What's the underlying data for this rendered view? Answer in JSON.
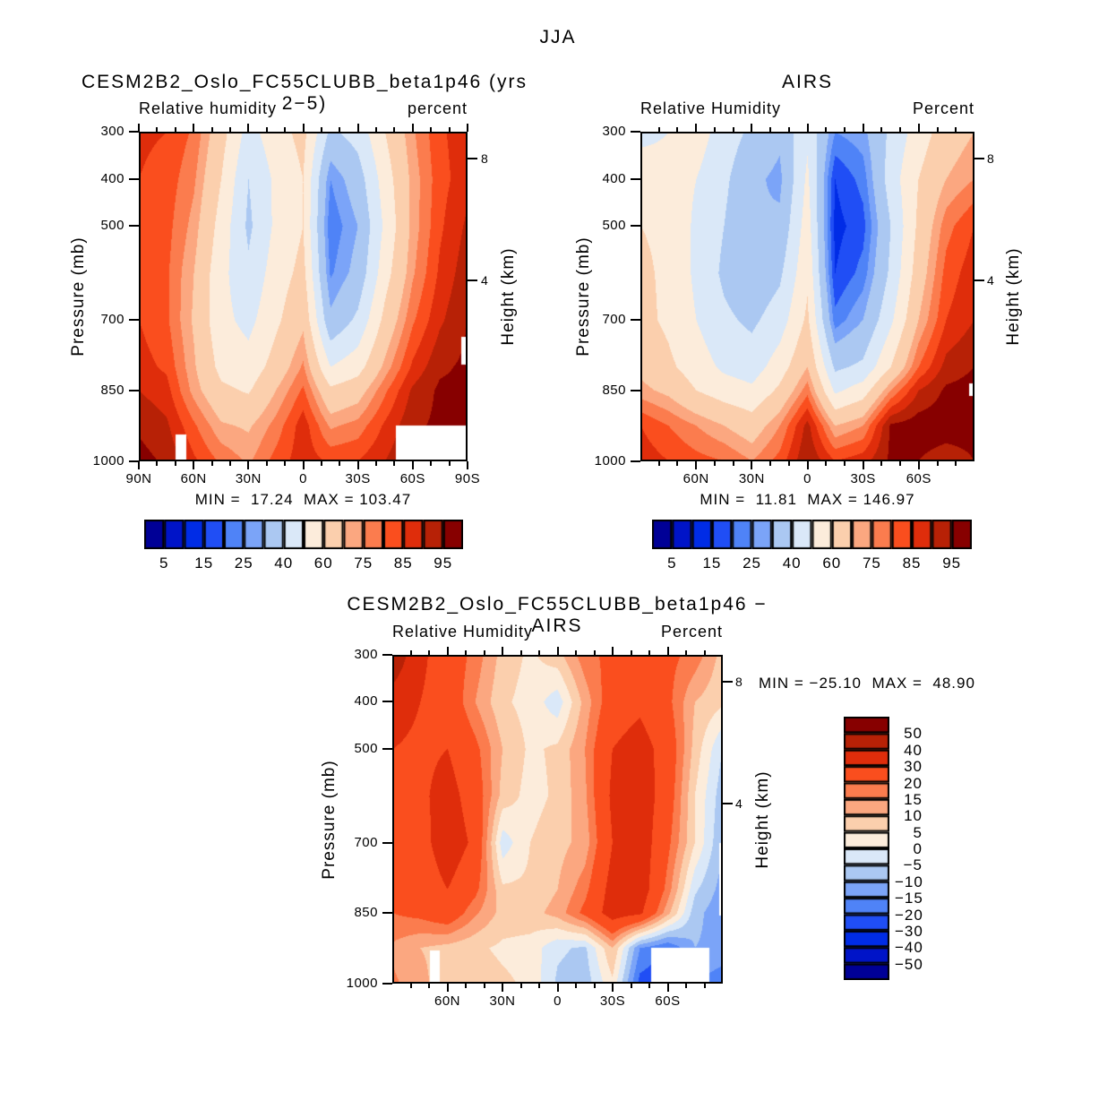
{
  "header": {
    "title": "JJA"
  },
  "palette": [
    "#000096",
    "#0014C8",
    "#002CE6",
    "#204EF5",
    "#4F83F7",
    "#7BA4F8",
    "#ABC8F2",
    "#DAE8F8",
    "#FCECDB",
    "#FBCFAD",
    "#FBA780",
    "#FB7C4E",
    "#FA4E1E",
    "#DF2D0B",
    "#B72106",
    "#870000"
  ],
  "chart_data": [
    {
      "type": "filled_contour",
      "title": "CESM2B2_Oslo_FC55CLUBB_beta1p46 (yrs 2−5)",
      "subtitle_left": "Relative humidity",
      "subtitle_right": "percent",
      "ylabel_left": "Pressure (mb)",
      "ylabel_right": "Height (km)",
      "stats_text": "MIN =  17.24  MAX = 103.47",
      "min": 17.24,
      "max": 103.47,
      "x_range": [
        90,
        -90
      ],
      "y_range": [
        300,
        1000
      ],
      "x_ticks": {
        "labels": [
          "90N",
          "60N",
          "30N",
          "0",
          "30S",
          "60S",
          "90S"
        ],
        "lats": [
          90,
          60,
          30,
          0,
          -30,
          -60,
          -90
        ]
      },
      "y_ticks": [
        "300",
        "400",
        "500",
        "700",
        "850",
        "1000"
      ],
      "height_km_ticks": [
        {
          "label": "8",
          "pressure_mb": 357
        },
        {
          "label": "4",
          "pressure_mb": 616
        }
      ],
      "levels": [
        5,
        10,
        15,
        20,
        25,
        30,
        40,
        50,
        60,
        70,
        75,
        80,
        85,
        90,
        95
      ],
      "colorbar_labels": [
        "5",
        "15",
        "25",
        "40",
        "60",
        "75",
        "85",
        "95"
      ],
      "colorbar_label_boundaries": [
        1,
        3,
        5,
        7,
        9,
        11,
        13,
        15
      ],
      "grid_lats": [
        90,
        75,
        60,
        45,
        30,
        15,
        0,
        -15,
        -30,
        -45,
        -60,
        -75,
        -90
      ],
      "grid_pressures_mb": [
        300,
        400,
        500,
        600,
        700,
        800,
        850,
        925,
        1000
      ],
      "values": [
        [
          86,
          85,
          79,
          64,
          46,
          56,
          63,
          38,
          44,
          60,
          74,
          84,
          88
        ],
        [
          85,
          83,
          76,
          60,
          40,
          52,
          60,
          25,
          35,
          55,
          72,
          83,
          88
        ],
        [
          84,
          82,
          73,
          56,
          38,
          52,
          60,
          21,
          30,
          52,
          72,
          84,
          91
        ],
        [
          84,
          81,
          70,
          53,
          42,
          55,
          63,
          24,
          33,
          56,
          74,
          86,
          93
        ],
        [
          85,
          81,
          69,
          53,
          47,
          58,
          68,
          32,
          42,
          63,
          79,
          89,
          95
        ],
        [
          87,
          84,
          71,
          57,
          54,
          64,
          76,
          50,
          56,
          72,
          86,
          94,
          96
        ],
        [
          90,
          87,
          73,
          62,
          59,
          70,
          81,
          62,
          66,
          79,
          91,
          96,
          96
        ],
        [
          94,
          91,
          81,
          71,
          69,
          77,
          88,
          74,
          77,
          86,
          94,
          96,
          96
        ],
        [
          97,
          94,
          86,
          79,
          74,
          82,
          88,
          84,
          85,
          90,
          95,
          96,
          96
        ]
      ],
      "missing_regions": [
        {
          "latN": 70,
          "latS": 64,
          "p0": 943,
          "p1": 1000
        },
        {
          "latN": -51,
          "latS": -90,
          "p0": 924,
          "p1": 1000
        },
        {
          "latN": -87,
          "latS": -90,
          "p0": 735,
          "p1": 795
        }
      ]
    },
    {
      "type": "filled_contour",
      "title": "AIRS",
      "subtitle_left": "Relative Humidity",
      "subtitle_right": "Percent",
      "ylabel_left": "Pressure (mb)",
      "ylabel_right": "Height (km)",
      "stats_text": "MIN =  11.81  MAX = 146.97",
      "min": 11.81,
      "max": 146.97,
      "x_range": [
        90,
        -90
      ],
      "y_range": [
        300,
        1000
      ],
      "x_ticks": {
        "labels": [
          "60N",
          "30N",
          "0",
          "30S",
          "60S"
        ],
        "lats": [
          60,
          30,
          0,
          -30,
          -60
        ]
      },
      "y_ticks": [
        "300",
        "400",
        "500",
        "700",
        "850",
        "1000"
      ],
      "height_km_ticks": [
        {
          "label": "8",
          "pressure_mb": 357
        },
        {
          "label": "4",
          "pressure_mb": 616
        }
      ],
      "levels": [
        5,
        10,
        15,
        20,
        25,
        30,
        40,
        50,
        60,
        70,
        75,
        80,
        85,
        90,
        95
      ],
      "colorbar_labels": [
        "5",
        "15",
        "25",
        "40",
        "60",
        "75",
        "85",
        "95"
      ],
      "colorbar_label_boundaries": [
        1,
        3,
        5,
        7,
        9,
        11,
        13,
        15
      ],
      "grid_lats": [
        90,
        75,
        60,
        45,
        30,
        15,
        0,
        -15,
        -30,
        -45,
        -60,
        -75,
        -90
      ],
      "grid_pressures_mb": [
        300,
        400,
        500,
        600,
        700,
        800,
        850,
        925,
        1000
      ],
      "values": [
        [
          46,
          50,
          55,
          45,
          38,
          32,
          48,
          25,
          28,
          42,
          55,
          65,
          70
        ],
        [
          58,
          55,
          50,
          42,
          32,
          28,
          52,
          15,
          22,
          45,
          60,
          70,
          75
        ],
        [
          60,
          58,
          48,
          40,
          30,
          32,
          55,
          13,
          18,
          40,
          62,
          78,
          85
        ],
        [
          62,
          58,
          48,
          38,
          32,
          38,
          58,
          15,
          22,
          42,
          65,
          82,
          88
        ],
        [
          63,
          58,
          50,
          42,
          38,
          45,
          62,
          22,
          30,
          48,
          70,
          85,
          90
        ],
        [
          68,
          62,
          55,
          48,
          45,
          55,
          70,
          38,
          42,
          60,
          80,
          92,
          95
        ],
        [
          72,
          68,
          60,
          55,
          52,
          62,
          78,
          48,
          55,
          75,
          90,
          96,
          97
        ],
        [
          85,
          80,
          75,
          70,
          65,
          75,
          92,
          70,
          75,
          96,
          98,
          98,
          97
        ],
        [
          88,
          85,
          82,
          80,
          75,
          82,
          95,
          85,
          88,
          96,
          95,
          92,
          95
        ]
      ],
      "missing_regions": [
        {
          "latN": -87.5,
          "latS": -90,
          "p0": 835,
          "p1": 862
        }
      ]
    },
    {
      "type": "filled_contour",
      "title": "CESM2B2_Oslo_FC55CLUBB_beta1p46 − AIRS",
      "subtitle_left": "Relative Humidity",
      "subtitle_right": "Percent",
      "ylabel_left": "Pressure (mb)",
      "ylabel_right": "Height (km)",
      "stats_text": "MIN = −25.10  MAX =  48.90",
      "min": -25.1,
      "max": 48.9,
      "x_range": [
        90,
        -90
      ],
      "y_range": [
        300,
        1000
      ],
      "x_ticks": {
        "labels": [
          "60N",
          "30N",
          "0",
          "30S",
          "60S"
        ],
        "lats": [
          60,
          30,
          0,
          -30,
          -60
        ]
      },
      "y_ticks": [
        "300",
        "400",
        "500",
        "700",
        "850",
        "1000"
      ],
      "height_km_ticks": [
        {
          "label": "8",
          "pressure_mb": 357
        },
        {
          "label": "4",
          "pressure_mb": 616
        }
      ],
      "levels": [
        -50,
        -40,
        -30,
        -20,
        -15,
        -10,
        -5,
        0,
        5,
        10,
        15,
        20,
        30,
        40,
        50
      ],
      "colorbar_labels": [
        "50",
        "40",
        "30",
        "20",
        "15",
        "10",
        "5",
        "0",
        "−5",
        "−10",
        "−15",
        "−20",
        "−30",
        "−40",
        "−50"
      ],
      "colorbar_label_boundaries": [
        1,
        2,
        3,
        4,
        5,
        6,
        7,
        8,
        9,
        10,
        11,
        12,
        13,
        14,
        15
      ],
      "grid_lats": [
        90,
        75,
        60,
        45,
        30,
        15,
        0,
        -15,
        -30,
        -45,
        -60,
        -75,
        -90
      ],
      "grid_pressures_mb": [
        300,
        400,
        500,
        600,
        700,
        800,
        850,
        925,
        1000
      ],
      "values": [
        [
          48,
          32,
          25,
          18,
          8,
          4,
          8,
          18,
          22,
          25,
          22,
          18,
          8
        ],
        [
          35,
          30,
          26,
          15,
          6,
          3,
          -3,
          12,
          25,
          28,
          22,
          10,
          6
        ],
        [
          30,
          28,
          30,
          22,
          10,
          4,
          6,
          15,
          30,
          34,
          26,
          8,
          -5
        ],
        [
          26,
          28,
          34,
          25,
          8,
          3,
          6,
          14,
          32,
          36,
          25,
          5,
          -8
        ],
        [
          24,
          26,
          36,
          28,
          -3,
          5,
          8,
          12,
          30,
          36,
          22,
          5,
          -10
        ],
        [
          22,
          24,
          30,
          22,
          6,
          6,
          10,
          18,
          34,
          36,
          18,
          -4,
          -12
        ],
        [
          20,
          22,
          26,
          16,
          8,
          8,
          12,
          22,
          35,
          32,
          12,
          -8,
          -14
        ],
        [
          14,
          10,
          8,
          6,
          4,
          3,
          -4,
          -6,
          10,
          -15,
          -20,
          -10,
          -12
        ],
        [
          16,
          12,
          6,
          8,
          6,
          4,
          -6,
          -8,
          4,
          -22,
          -25,
          -15,
          -18
        ]
      ],
      "missing_regions": [
        {
          "latN": 69.5,
          "latS": 64.5,
          "p0": 930,
          "p1": 1000
        },
        {
          "latN": -51,
          "latS": -83,
          "p0": 925,
          "p1": 1000
        },
        {
          "latN": -88.5,
          "latS": -90,
          "p0": 700,
          "p1": 855
        }
      ]
    }
  ]
}
